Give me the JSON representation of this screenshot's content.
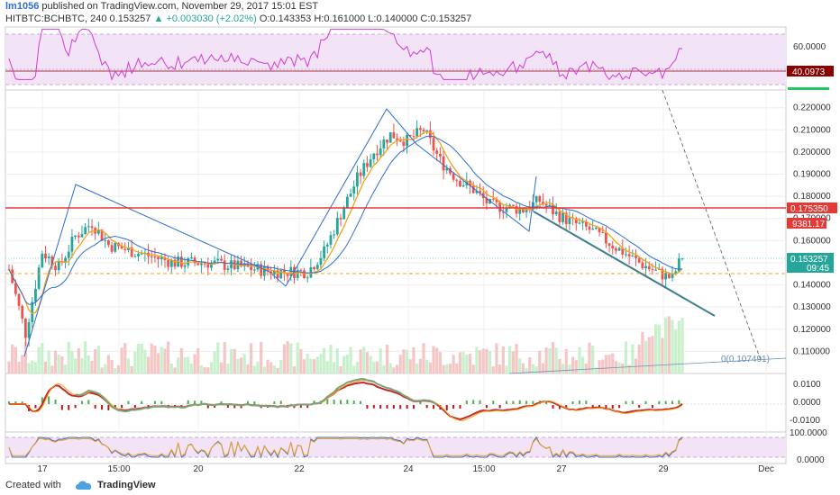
{
  "header": {
    "author": "lm1056",
    "published": "published on TradingView.com, November 29, 2017 15:01 EST",
    "symbol": "HITBTC:BCHBTC, 240",
    "last": "0.153257",
    "change": "+0.003030 (+2.02%)",
    "ohlc": "O:0.143353  H:0.161000  L:0.140000  C:0.153257"
  },
  "footer": {
    "created_with": "Created with",
    "brand": "TradingView"
  },
  "colors": {
    "bull": "#26a69a",
    "bear": "#ef5350",
    "vol_bull": "#c8f0cc",
    "vol_bear": "#f5c6c6",
    "ma_fast": "#f4a21a",
    "ma_slow": "#2f6dd3",
    "rsi": "#d43bd6",
    "red_line": "#e53935",
    "orange_dash": "#f4a21a"
  },
  "chart_data": [
    {
      "type": "line",
      "name": "RSI",
      "ylim": [
        20,
        80
      ],
      "y_ticks": [
        "60.0000"
      ],
      "last_label": "40.0973",
      "grid": true
    },
    {
      "type": "candlestick",
      "ylim": [
        0.1,
        0.228
      ],
      "y_ticks": [
        "0.220000",
        "0.210000",
        "0.200000",
        "0.190000",
        "0.180000",
        "0.170000",
        "0.160000",
        "0.150000",
        "0.140000",
        "0.130000",
        "0.120000",
        "0.110000"
      ],
      "x_ticks": [
        "17",
        "15:00",
        "20",
        "22",
        "24",
        "15:00",
        "27",
        "29",
        "Dec"
      ],
      "horizontal_level": 0.17535,
      "horizontal_level_label": "0.175350",
      "last_price_label": "0.153257",
      "countdown_label": "09:45",
      "volume_label": "9381.17",
      "fib_label": "0(0.107491)",
      "dashed_level": 0.145,
      "grid": true
    },
    {
      "type": "line",
      "name": "MACD",
      "y_ticks": [
        "0.0100",
        "0.0000",
        "-0.0100"
      ]
    },
    {
      "type": "line",
      "name": "Stochastic",
      "y_ticks": [
        "100.0000",
        "0.0000"
      ]
    }
  ]
}
